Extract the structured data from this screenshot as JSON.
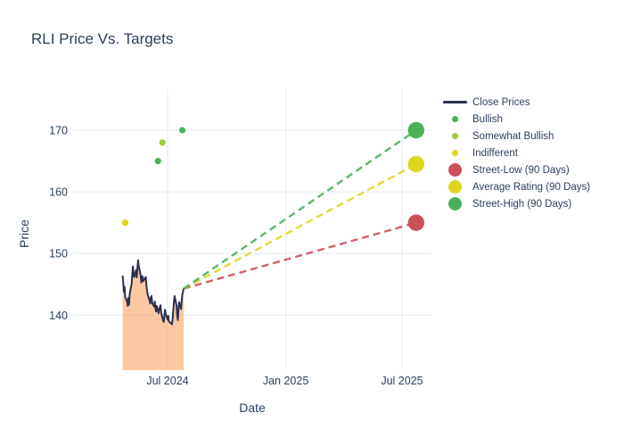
{
  "title": "RLI Price Vs. Targets",
  "colors": {
    "text": "#2a3f5f",
    "close_line": "#2a3150",
    "area_fill": "rgba(247,165,99,0.6)",
    "grid": "#e9eef7",
    "bullish": "#4ab158",
    "somewhat_bullish": "#9fcb35",
    "indifferent": "#ded61e",
    "street_low": "#cd4f58",
    "average_rating": "#ded61e",
    "street_high": "#4ab158",
    "background": "#ffffff"
  },
  "legend": {
    "items": [
      {
        "label": "Close Prices",
        "marker": "line",
        "color_key": "close_line"
      },
      {
        "label": "Bullish",
        "marker": "dot-sm",
        "color_key": "bullish"
      },
      {
        "label": "Somewhat Bullish",
        "marker": "dot-sm",
        "color_key": "somewhat_bullish"
      },
      {
        "label": "Indifferent",
        "marker": "dot-sm",
        "color_key": "indifferent"
      },
      {
        "label": "Street-Low (90 Days)",
        "marker": "dot-lg",
        "color_key": "street_low"
      },
      {
        "label": "Average Rating (90 Days)",
        "marker": "dot-lg",
        "color_key": "average_rating"
      },
      {
        "label": "Street-High (90 Days)",
        "marker": "dot-lg",
        "color_key": "street_high"
      }
    ]
  },
  "chart_data": {
    "type": "line",
    "title": "RLI Price Vs. Targets",
    "xlabel": "Date",
    "ylabel": "Price",
    "grid": true,
    "legend_position": "right",
    "ylim": [
      130.5,
      177
    ],
    "y_ticks": [
      140,
      150,
      160,
      170
    ],
    "x_ticks": [
      {
        "label": "Jul 2024",
        "date": "2024-07-01"
      },
      {
        "label": "Jan 2025",
        "date": "2025-01-01"
      },
      {
        "label": "Jul 2025",
        "date": "2025-07-01"
      }
    ],
    "close_prices": {
      "name": "Close Prices",
      "dates": [
        "2024-04-22",
        "2024-04-23",
        "2024-04-24",
        "2024-04-25",
        "2024-04-26",
        "2024-04-29",
        "2024-04-30",
        "2024-05-01",
        "2024-05-02",
        "2024-05-03",
        "2024-05-06",
        "2024-05-07",
        "2024-05-08",
        "2024-05-09",
        "2024-05-10",
        "2024-05-13",
        "2024-05-14",
        "2024-05-15",
        "2024-05-16",
        "2024-05-17",
        "2024-05-20",
        "2024-05-21",
        "2024-05-22",
        "2024-05-23",
        "2024-05-24",
        "2024-05-28",
        "2024-05-29",
        "2024-05-30",
        "2024-05-31",
        "2024-06-03",
        "2024-06-04",
        "2024-06-05",
        "2024-06-06",
        "2024-06-07",
        "2024-06-10",
        "2024-06-11",
        "2024-06-12",
        "2024-06-13",
        "2024-06-14",
        "2024-06-17",
        "2024-06-18",
        "2024-06-20",
        "2024-06-21",
        "2024-06-24",
        "2024-06-25",
        "2024-06-26",
        "2024-06-27",
        "2024-06-28",
        "2024-07-01",
        "2024-07-02",
        "2024-07-03",
        "2024-07-05",
        "2024-07-08",
        "2024-07-09",
        "2024-07-10",
        "2024-07-11",
        "2024-07-12",
        "2024-07-15",
        "2024-07-16",
        "2024-07-17",
        "2024-07-18",
        "2024-07-19",
        "2024-07-22",
        "2024-07-23",
        "2024-07-24",
        "2024-07-25",
        "2024-07-26"
      ],
      "values": [
        146.4,
        145.2,
        143.8,
        144.6,
        143.0,
        142.2,
        141.5,
        142.8,
        141.7,
        143.4,
        145.1,
        146.6,
        147.9,
        146.9,
        146.2,
        147.3,
        146.1,
        147.5,
        148.9,
        148.0,
        146.6,
        145.3,
        145.9,
        146.3,
        145.5,
        146.2,
        145.0,
        144.1,
        143.3,
        142.4,
        141.9,
        142.9,
        143.1,
        142.0,
        141.4,
        142.2,
        141.2,
        140.6,
        141.5,
        140.3,
        141.0,
        141.6,
        140.4,
        139.1,
        138.9,
        139.9,
        140.9,
        140.2,
        139.3,
        139.9,
        139.0,
        138.8,
        138.5,
        139.6,
        141.0,
        142.3,
        143.1,
        141.5,
        139.9,
        139.2,
        140.9,
        142.1,
        141.0,
        142.5,
        143.4,
        143.8,
        144.3
      ]
    },
    "ratings_scatter": [
      {
        "label": "Indifferent",
        "date": "2024-04-26",
        "value": 155,
        "color_key": "indifferent"
      },
      {
        "label": "Bullish",
        "date": "2024-06-16",
        "value": 165,
        "color_key": "bullish"
      },
      {
        "label": "Somewhat Bullish",
        "date": "2024-06-23",
        "value": 168,
        "color_key": "somewhat_bullish"
      },
      {
        "label": "Bullish",
        "date": "2024-07-24",
        "value": 170,
        "color_key": "bullish"
      }
    ],
    "price_targets_90d": [
      {
        "label": "Street-Low (90 Days)",
        "date": "2025-07-23",
        "value": 155,
        "color_key": "street_low"
      },
      {
        "label": "Average Rating (90 Days)",
        "date": "2025-07-23",
        "value": 164.5,
        "color_key": "average_rating"
      },
      {
        "label": "Street-High (90 Days)",
        "date": "2025-07-23",
        "value": 170,
        "color_key": "street_high"
      }
    ],
    "target_lines_from": {
      "date": "2024-07-26",
      "value": 144.3
    }
  }
}
